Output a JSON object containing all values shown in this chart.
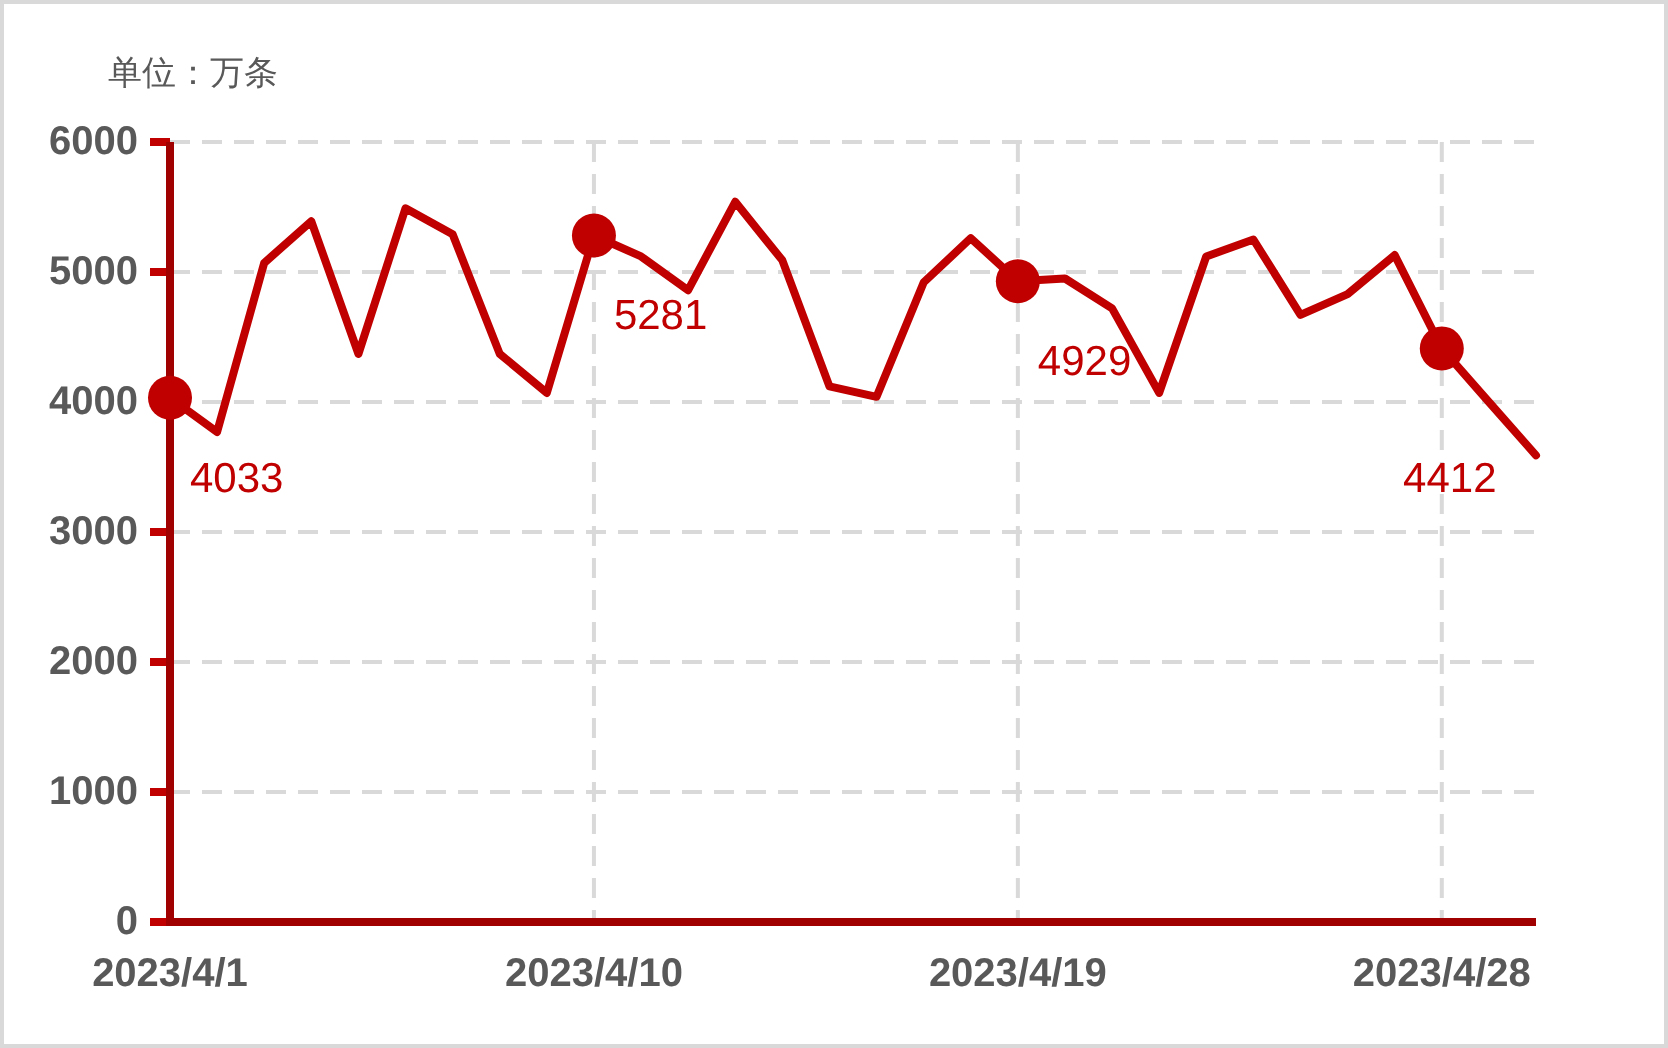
{
  "chart_data": {
    "type": "line",
    "ylabel": "单位：万条",
    "x": [
      "2023-04-01",
      "2023-04-02",
      "2023-04-03",
      "2023-04-04",
      "2023-04-05",
      "2023-04-06",
      "2023-04-07",
      "2023-04-08",
      "2023-04-09",
      "2023-04-10",
      "2023-04-11",
      "2023-04-12",
      "2023-04-13",
      "2023-04-14",
      "2023-04-15",
      "2023-04-16",
      "2023-04-17",
      "2023-04-18",
      "2023-04-19",
      "2023-04-20",
      "2023-04-21",
      "2023-04-22",
      "2023-04-23",
      "2023-04-24",
      "2023-04-25",
      "2023-04-26",
      "2023-04-27",
      "2023-04-28",
      "2023-04-29",
      "2023-04-30"
    ],
    "series": [
      {
        "color": "#c00000",
        "values": [
          4033,
          3770,
          5070,
          5390,
          4370,
          5490,
          5290,
          4370,
          4070,
          5281,
          5120,
          4860,
          5540,
          5090,
          4120,
          4040,
          4920,
          5260,
          4929,
          4950,
          4720,
          4070,
          5120,
          5250,
          4670,
          4830,
          5130,
          4412,
          4000,
          3590
        ],
        "value_labels": [
          "4033",
          null,
          null,
          null,
          null,
          null,
          null,
          null,
          null,
          "5281",
          null,
          null,
          null,
          null,
          null,
          null,
          null,
          null,
          "4929",
          null,
          null,
          null,
          null,
          null,
          null,
          null,
          null,
          "4412",
          null,
          null
        ]
      }
    ],
    "xlim": [
      "2023-04-01",
      "2023-04-30"
    ],
    "xticks": [
      {
        "value": "2023-04-01",
        "label": "2023/4/1"
      },
      {
        "value": "2023-04-10",
        "label": "2023/4/10"
      },
      {
        "value": "2023-04-19",
        "label": "2023/4/19"
      },
      {
        "value": "2023-04-28",
        "label": "2023/4/28"
      }
    ],
    "ylim": [
      0,
      6000
    ],
    "yticks": [
      0,
      1000,
      2000,
      3000,
      4000,
      5000,
      6000
    ],
    "grid": true,
    "line_style": "solid"
  }
}
